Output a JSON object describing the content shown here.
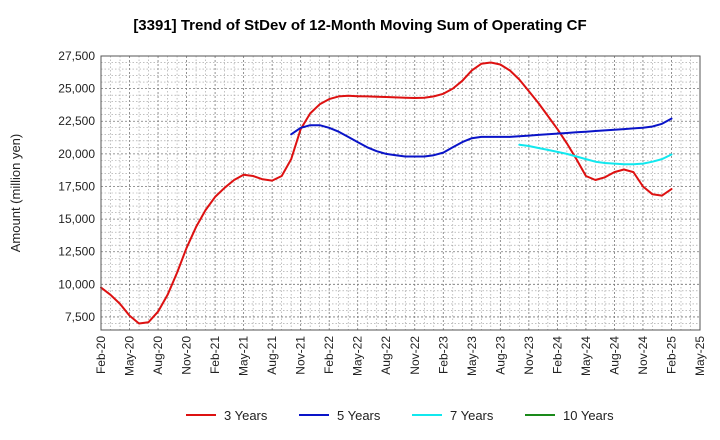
{
  "chart_data": {
    "type": "line",
    "title": "[3391]  Trend of StDev of 12-Month Moving Sum of Operating CF",
    "xlabel": "",
    "ylabel": "Amount (million yen)",
    "ylim": [
      6500,
      27500
    ],
    "yticks": [
      7500,
      10000,
      12500,
      15000,
      17500,
      20000,
      22500,
      25000,
      27500
    ],
    "ytick_labels": [
      "7,500",
      "10,000",
      "12,500",
      "15,000",
      "17,500",
      "20,000",
      "22,500",
      "25,000",
      "27,500"
    ],
    "xlim": [
      0,
      63
    ],
    "xticks": [
      0,
      3,
      6,
      9,
      12,
      15,
      18,
      21,
      24,
      27,
      30,
      33,
      36,
      39,
      42,
      45,
      48,
      51,
      54,
      57,
      60,
      63
    ],
    "xtick_labels": [
      "Feb-20",
      "May-20",
      "Aug-20",
      "Nov-20",
      "Feb-21",
      "May-21",
      "Aug-21",
      "Nov-21",
      "Feb-22",
      "May-22",
      "Aug-22",
      "Nov-22",
      "Feb-23",
      "May-23",
      "Aug-23",
      "Nov-23",
      "Feb-24",
      "May-24",
      "Aug-24",
      "Nov-24",
      "Feb-25",
      "May-25"
    ],
    "grid": true,
    "legend_position": "bottom",
    "series": [
      {
        "name": "3 Years",
        "color": "#dd1111",
        "x": [
          0,
          1,
          2,
          3,
          4,
          5,
          6,
          7,
          8,
          9,
          10,
          11,
          12,
          13,
          14,
          15,
          16,
          17,
          18,
          19,
          20,
          21,
          22,
          23,
          24,
          25,
          26,
          27,
          28,
          29,
          30,
          31,
          32,
          33,
          34,
          35,
          36,
          37,
          38,
          39,
          40,
          41,
          42,
          43,
          44,
          45,
          46,
          47,
          48,
          49,
          50,
          51,
          52,
          53,
          54,
          55,
          56,
          57,
          58,
          59,
          60
        ],
        "values": [
          9750,
          9200,
          8500,
          7600,
          7000,
          7100,
          7900,
          9200,
          10900,
          12800,
          14400,
          15700,
          16700,
          17400,
          18000,
          18400,
          18300,
          18050,
          17950,
          18300,
          19600,
          21900,
          23100,
          23800,
          24200,
          24400,
          24450,
          24420,
          24400,
          24380,
          24360,
          24330,
          24300,
          24280,
          24300,
          24400,
          24600,
          25000,
          25600,
          26400,
          26900,
          27000,
          26850,
          26400,
          25700,
          24800,
          23900,
          22900,
          21900,
          20800,
          19600,
          18300,
          18000,
          18200,
          18600,
          18800,
          18600,
          17500,
          16900,
          16800,
          17300
        ]
      },
      {
        "name": "5 Years",
        "color": "#0a14c8",
        "x": [
          20,
          21,
          22,
          23,
          24,
          25,
          26,
          27,
          28,
          29,
          30,
          31,
          32,
          33,
          34,
          35,
          36,
          37,
          38,
          39,
          40,
          41,
          42,
          43,
          44,
          45,
          46,
          47,
          48,
          49,
          50,
          51,
          52,
          53,
          54,
          55,
          56,
          57,
          58,
          59,
          60
        ],
        "values": [
          21500,
          22000,
          22200,
          22200,
          22000,
          21700,
          21300,
          20900,
          20500,
          20200,
          20000,
          19900,
          19800,
          19800,
          19800,
          19900,
          20100,
          20500,
          20900,
          21200,
          21300,
          21300,
          21300,
          21300,
          21350,
          21400,
          21450,
          21500,
          21550,
          21600,
          21650,
          21700,
          21750,
          21800,
          21850,
          21900,
          21950,
          22000,
          22100,
          22300,
          22700
        ]
      },
      {
        "name": "7 Years",
        "color": "#11e8ee",
        "x": [
          44,
          45,
          46,
          47,
          48,
          49,
          50,
          51,
          52,
          53,
          54,
          55,
          56,
          57,
          58,
          59,
          60
        ],
        "values": [
          20700,
          20600,
          20450,
          20300,
          20150,
          20000,
          19800,
          19600,
          19400,
          19300,
          19250,
          19200,
          19200,
          19250,
          19400,
          19600,
          19950
        ]
      },
      {
        "name": "10 Years",
        "color": "#1a8a1a",
        "x": [],
        "values": []
      }
    ]
  }
}
